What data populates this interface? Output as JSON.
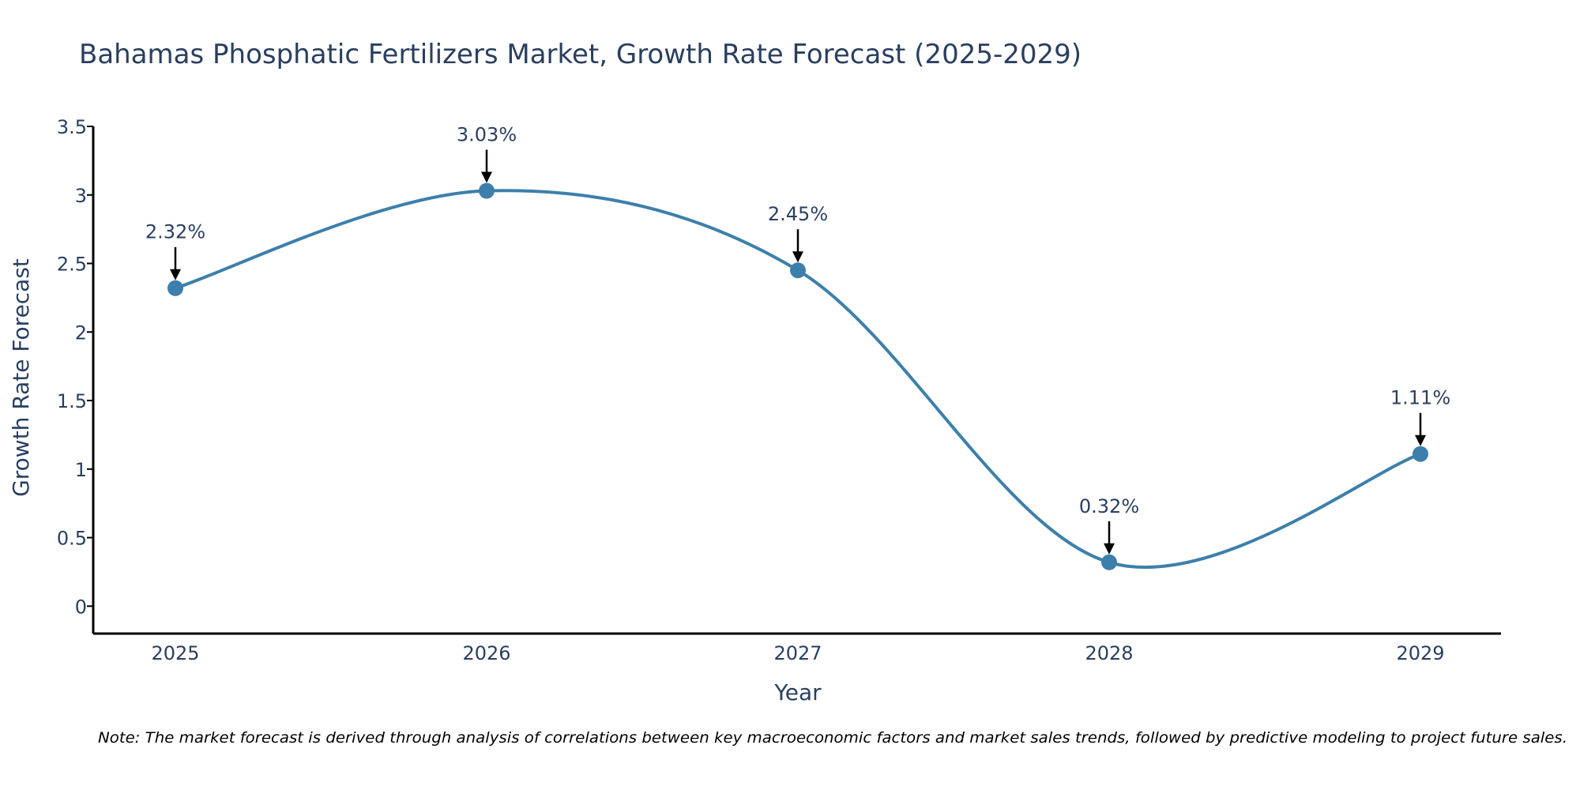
{
  "chart_data": {
    "type": "line",
    "title": "Bahamas Phosphatic Fertilizers Market, Growth Rate Forecast (2025-2029)",
    "xlabel": "Year",
    "ylabel": "Growth Rate Forecast",
    "categories": [
      "2025",
      "2026",
      "2027",
      "2028",
      "2029"
    ],
    "values": [
      2.32,
      3.03,
      2.45,
      0.32,
      1.11
    ],
    "data_labels": [
      "2.32%",
      "3.03%",
      "2.45%",
      "0.32%",
      "1.11%"
    ],
    "ylim": [
      -0.2,
      3.5
    ],
    "yticks": [
      0,
      0.5,
      1,
      1.5,
      2,
      2.5,
      3,
      3.5
    ],
    "ytick_labels": [
      "0",
      "0.5",
      "1",
      "1.5",
      "2",
      "2.5",
      "3",
      "3.5"
    ],
    "grid": false,
    "line_shape": "spline",
    "colors": {
      "line": "#3d7fab",
      "marker": "#3d7fab",
      "arrow": "#000000",
      "axis": "#000000",
      "text": "#2a3f5f"
    },
    "note": "Note: The market forecast is derived through analysis of correlations between key macroeconomic factors and market sales trends, followed by predictive modeling to project future sales."
  }
}
